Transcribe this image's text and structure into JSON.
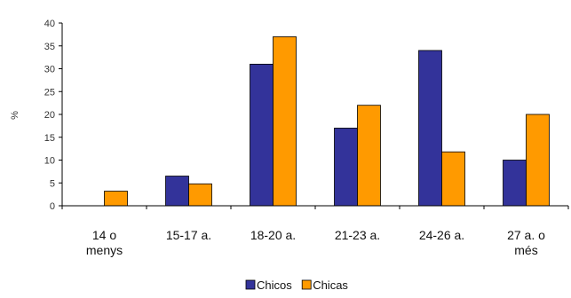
{
  "chart_data": {
    "type": "bar",
    "title": "",
    "xlabel": "",
    "ylabel": "%",
    "ylim": [
      0,
      40
    ],
    "yticks": [
      0,
      5,
      10,
      15,
      20,
      25,
      30,
      35,
      40
    ],
    "grid": false,
    "legend_position": "bottom",
    "categories": [
      [
        "14 o",
        "menys"
      ],
      [
        "15-17 a."
      ],
      [
        "18-20 a."
      ],
      [
        "21-23 a."
      ],
      [
        "24-26 a."
      ],
      [
        "27 a. o",
        "més"
      ]
    ],
    "series": [
      {
        "name": "Chicos",
        "color": "#33339a",
        "values": [
          0,
          6.5,
          31,
          17,
          34,
          10
        ]
      },
      {
        "name": "Chicas",
        "color": "#ff9a00",
        "values": [
          3.2,
          4.8,
          37,
          22,
          11.8,
          20
        ]
      }
    ]
  }
}
